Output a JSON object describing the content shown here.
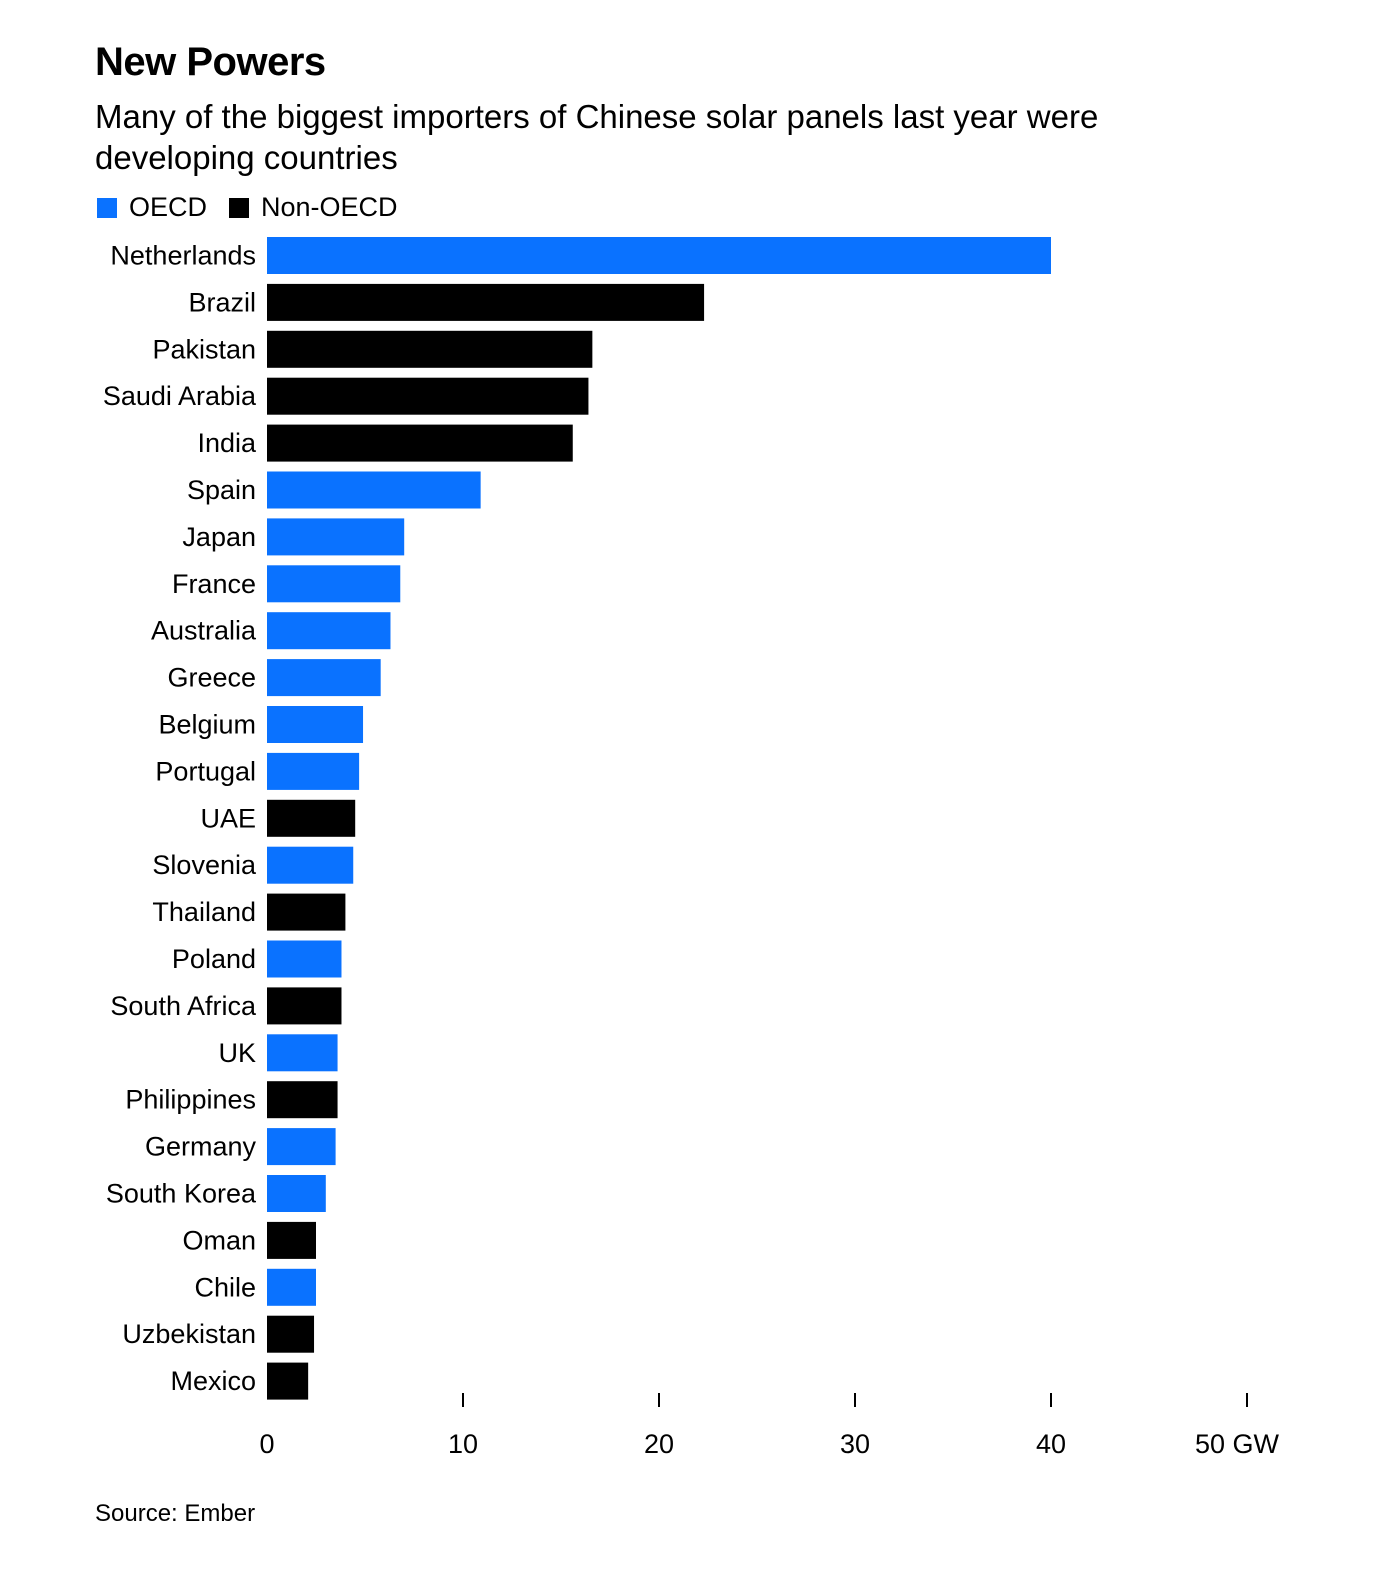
{
  "header": {
    "title": "New Powers",
    "subtitle": "Many of the biggest importers of Chinese solar panels last year were developing countries"
  },
  "legend": [
    {
      "label": "OECD",
      "color": "#0a72ff"
    },
    {
      "label": "Non-OECD",
      "color": "#000000"
    }
  ],
  "footer": {
    "source": "Source: Ember"
  },
  "chart_data": {
    "type": "bar",
    "orientation": "horizontal",
    "title": "New Powers",
    "subtitle": "Many of the biggest importers of Chinese solar panels last year were developing countries",
    "unit": "GW",
    "xlim": [
      0,
      50
    ],
    "ticks": [
      0,
      10,
      20,
      30,
      40,
      50
    ],
    "tick_labels": [
      "0",
      "10",
      "20",
      "30",
      "40",
      "50 GW"
    ],
    "grid": false,
    "legend_position": "top-left",
    "series": [
      {
        "name": "OECD",
        "color": "#0a72ff"
      },
      {
        "name": "Non-OECD",
        "color": "#000000"
      }
    ],
    "categories": [
      "Netherlands",
      "Brazil",
      "Pakistan",
      "Saudi Arabia",
      "India",
      "Spain",
      "Japan",
      "France",
      "Australia",
      "Greece",
      "Belgium",
      "Portugal",
      "UAE",
      "Slovenia",
      "Thailand",
      "Poland",
      "South Africa",
      "UK",
      "Philippines",
      "Germany",
      "South Korea",
      "Oman",
      "Chile",
      "Uzbekistan",
      "Mexico"
    ],
    "values": [
      40.0,
      22.3,
      16.6,
      16.4,
      15.6,
      10.9,
      7.0,
      6.8,
      6.3,
      5.8,
      4.9,
      4.7,
      4.5,
      4.4,
      4.0,
      3.8,
      3.8,
      3.6,
      3.6,
      3.5,
      3.0,
      2.5,
      2.5,
      2.4,
      2.1
    ],
    "groups": [
      "OECD",
      "Non-OECD",
      "Non-OECD",
      "Non-OECD",
      "Non-OECD",
      "OECD",
      "OECD",
      "OECD",
      "OECD",
      "OECD",
      "OECD",
      "OECD",
      "Non-OECD",
      "OECD",
      "Non-OECD",
      "OECD",
      "Non-OECD",
      "OECD",
      "Non-OECD",
      "OECD",
      "OECD",
      "Non-OECD",
      "OECD",
      "Non-OECD",
      "Non-OECD"
    ]
  }
}
